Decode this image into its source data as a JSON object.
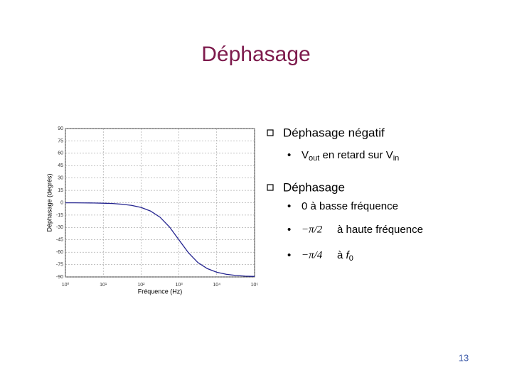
{
  "title": "Déphasage",
  "chart_data": {
    "type": "line",
    "y_label": "Déphasage (degrés)",
    "x_label": "Fréquence (Hz)",
    "x": [
      1,
      1.78,
      3.16,
      5.62,
      10,
      17.8,
      31.6,
      56.2,
      100,
      178,
      316,
      562,
      1000,
      1778,
      3162,
      5623,
      10000,
      17783,
      31623,
      56234,
      100000
    ],
    "series": [
      {
        "color": "#23238f",
        "values": [
          -0.1,
          -0.1,
          -0.2,
          -0.3,
          -0.6,
          -1.0,
          -1.8,
          -3.2,
          -5.7,
          -10.1,
          -17.5,
          -29.3,
          -45,
          -60.6,
          -72.5,
          -79.9,
          -84.3,
          -86.8,
          -88.2,
          -89.0,
          -89.4
        ]
      }
    ],
    "xscale": "log",
    "xlim": [
      1,
      100000
    ],
    "xticks": [
      {
        "value": 1,
        "label": "10⁰"
      },
      {
        "value": 10,
        "label": "10¹"
      },
      {
        "value": 100,
        "label": "10²"
      },
      {
        "value": 1000,
        "label": "10³"
      },
      {
        "value": 10000,
        "label": "10⁴"
      },
      {
        "value": 100000,
        "label": "10⁵"
      }
    ],
    "ylim": [
      -90,
      90
    ],
    "yticks": [
      90,
      75,
      60,
      45,
      30,
      15,
      0,
      -15,
      -30,
      -45,
      -60,
      -75,
      -90
    ],
    "grid": true
  },
  "bullets": [
    {
      "text": "Déphasage négatif",
      "items": [
        [
          "V",
          "out",
          " en retard sur V",
          "in"
        ]
      ]
    },
    {
      "text": "Déphasage",
      "items": [
        [
          "0 à basse fréquence"
        ],
        [
          "−π/2",
          "à haute fréquence"
        ],
        [
          "−π/4",
          "à ",
          "f",
          "0"
        ]
      ]
    }
  ],
  "page_number": "13"
}
